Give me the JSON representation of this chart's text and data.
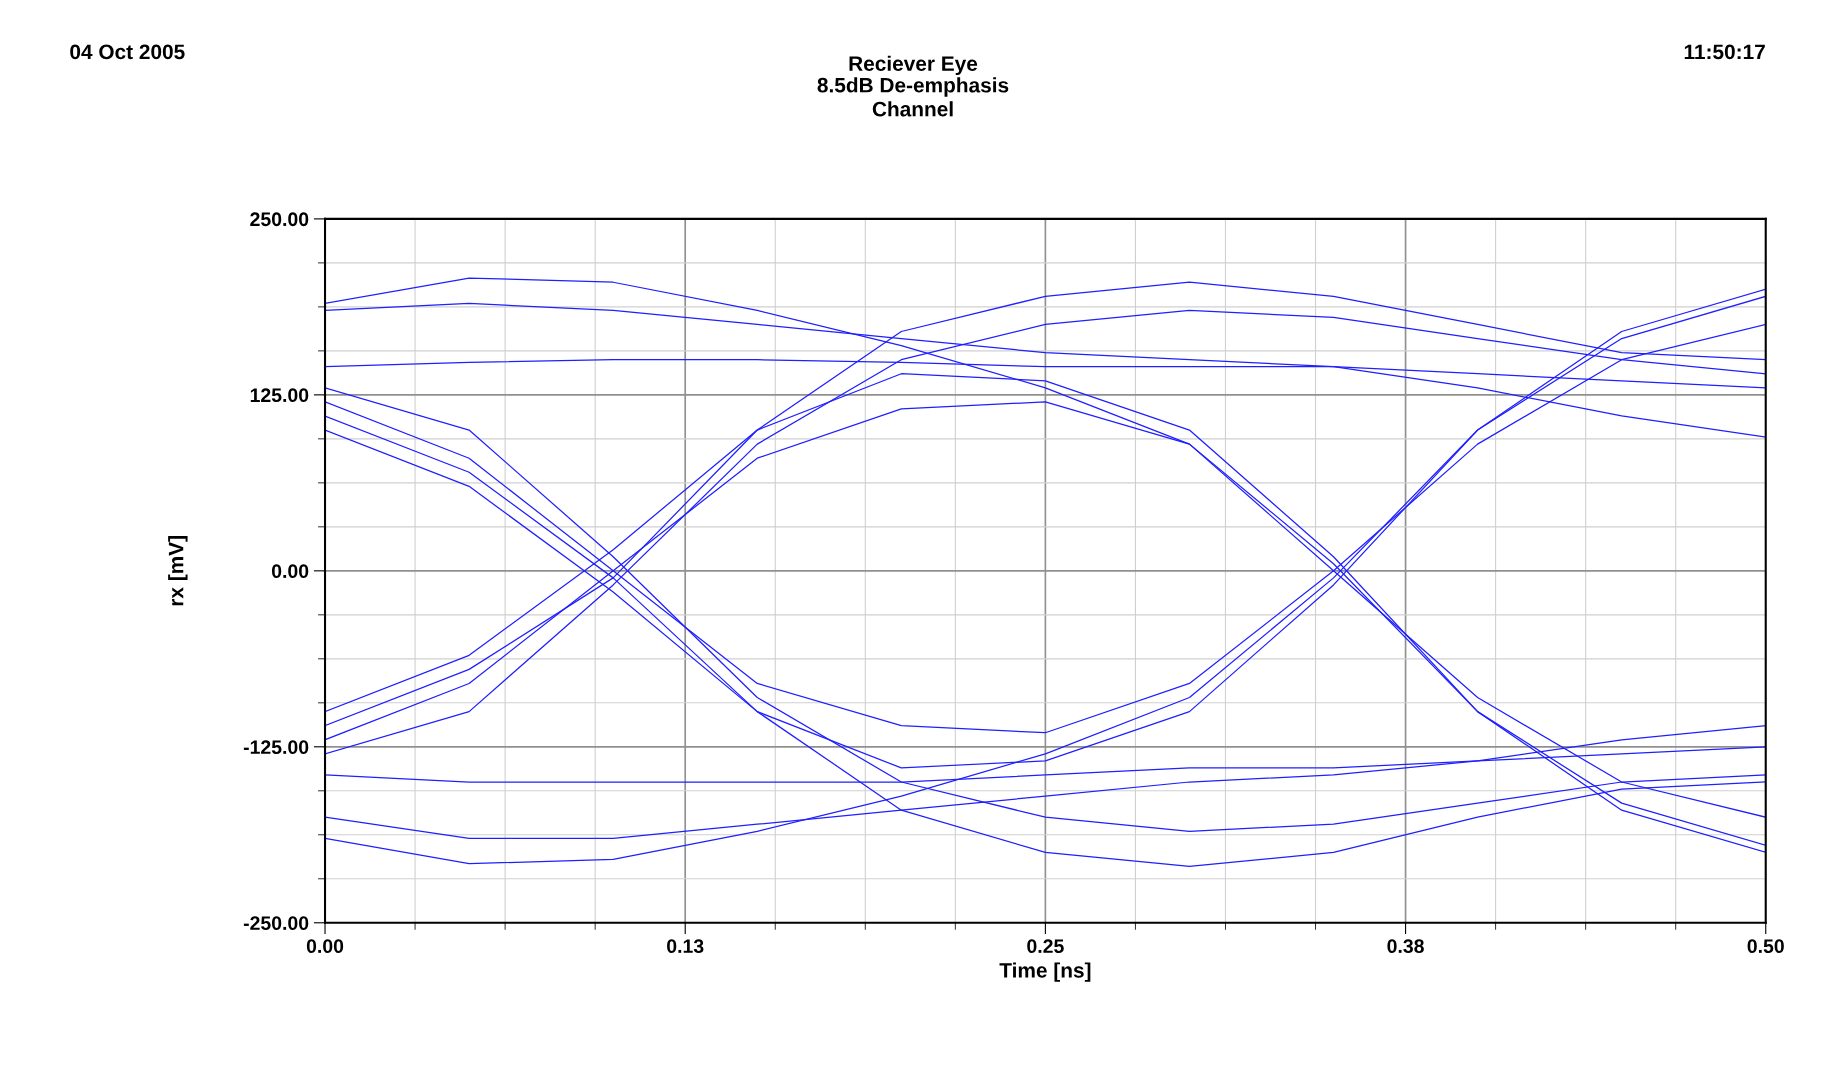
{
  "chart_data": {
    "type": "line",
    "title": "Reciever Eye",
    "subtitle": "8.5dB De-emphasis\nChannel",
    "xlabel": "Time [ns]",
    "ylabel": "rx [mV]",
    "annotations": [
      "04 Oct 2005",
      "11:50:17"
    ],
    "x": [
      0,
      0.05,
      0.1,
      0.15,
      0.2,
      0.25,
      0.3,
      0.35,
      0.4,
      0.45,
      0.5
    ],
    "xlim": [
      0,
      0.5
    ],
    "xticks": [
      {
        "value": 0,
        "label": "0.00"
      },
      {
        "value": 0.125,
        "label": "0.13"
      },
      {
        "value": 0.25,
        "label": "0.25"
      },
      {
        "value": 0.375,
        "label": "0.38"
      },
      {
        "value": 0.5,
        "label": "0.50"
      }
    ],
    "ylim": [
      -250,
      250
    ],
    "yticks": [
      {
        "value": -250,
        "label": "-250.00"
      },
      {
        "value": -125,
        "label": "-125.00"
      },
      {
        "value": 0,
        "label": "0.00"
      },
      {
        "value": 125,
        "label": "125.00"
      },
      {
        "value": 250,
        "label": "250.00"
      }
    ],
    "grid": true,
    "legend": false,
    "marker": "none",
    "line_style": "solid",
    "series": [
      {
        "color": "#1f1fff",
        "values": [
          120,
          80,
          0,
          -80,
          -110,
          -115,
          -80,
          0,
          90,
          150,
          175
        ]
      },
      {
        "color": "#1f1fff",
        "values": [
          -120,
          -80,
          0,
          80,
          115,
          120,
          90,
          0,
          -90,
          -150,
          -175
        ]
      },
      {
        "color": "#1f1fff",
        "values": [
          110,
          70,
          -5,
          -100,
          -170,
          -200,
          -210,
          -200,
          -175,
          -155,
          -150
        ]
      },
      {
        "color": "#1f1fff",
        "values": [
          -110,
          -70,
          -5,
          100,
          170,
          195,
          205,
          195,
          175,
          155,
          150
        ]
      },
      {
        "color": "#1f1fff",
        "values": [
          190,
          208,
          205,
          185,
          160,
          130,
          90,
          5,
          -100,
          -170,
          -200
        ]
      },
      {
        "color": "#1f1fff",
        "values": [
          -190,
          -208,
          -205,
          -185,
          -160,
          -130,
          -90,
          -5,
          100,
          170,
          200
        ]
      },
      {
        "color": "#1f1fff",
        "values": [
          145,
          148,
          150,
          150,
          148,
          145,
          145,
          145,
          140,
          135,
          130
        ]
      },
      {
        "color": "#1f1fff",
        "values": [
          -145,
          -150,
          -150,
          -150,
          -150,
          -145,
          -140,
          -140,
          -135,
          -130,
          -125
        ]
      },
      {
        "color": "#1f1fff",
        "values": [
          130,
          100,
          10,
          -90,
          -150,
          -175,
          -185,
          -180,
          -165,
          -150,
          -145
        ]
      },
      {
        "color": "#1f1fff",
        "values": [
          -130,
          -100,
          -10,
          90,
          150,
          175,
          185,
          180,
          165,
          150,
          140
        ]
      },
      {
        "color": "#1f1fff",
        "values": [
          -100,
          -60,
          15,
          100,
          140,
          135,
          100,
          10,
          -100,
          -165,
          -195
        ]
      },
      {
        "color": "#1f1fff",
        "values": [
          100,
          60,
          -15,
          -100,
          -140,
          -135,
          -100,
          -10,
          100,
          165,
          195
        ]
      },
      {
        "color": "#1f1fff",
        "values": [
          185,
          190,
          185,
          175,
          165,
          155,
          150,
          145,
          130,
          110,
          95
        ]
      },
      {
        "color": "#1f1fff",
        "values": [
          -175,
          -190,
          -190,
          -180,
          -170,
          -160,
          -150,
          -145,
          -135,
          -120,
          -110
        ]
      }
    ]
  }
}
